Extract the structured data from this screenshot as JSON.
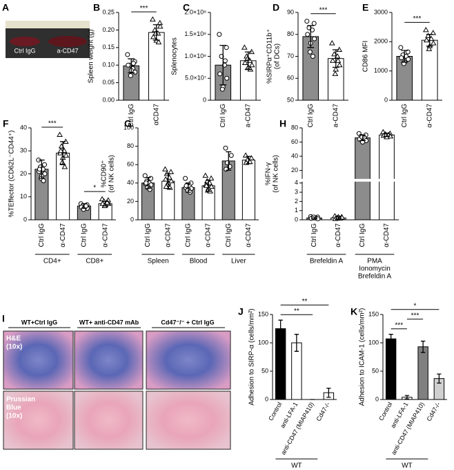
{
  "panel_a": {
    "label": "A",
    "captions": [
      "Ctrl IgG",
      "a-CD47"
    ]
  },
  "panel_i": {
    "label": "I",
    "columns": [
      "WT+Ctrl IgG",
      "WT+ anti-CD47 mAb",
      "Cd47⁻/⁻ + Ctrl  IgG"
    ],
    "rows": [
      [
        "H&E",
        "(10x)"
      ],
      [
        "Prussian",
        "Blue",
        "(10x)"
      ]
    ]
  },
  "chart_data": [
    {
      "type": "bar",
      "panel": "B",
      "ylabel": "Spleen weight (g)",
      "categories": [
        "Ctrl IgG",
        "αCD47"
      ],
      "values": [
        0.098,
        0.193
      ],
      "errors": [
        0.02,
        0.022
      ],
      "colors": [
        "#8c8c8c",
        "#ffffff"
      ],
      "markers": [
        "circle",
        "triangle"
      ],
      "points": [
        [
          0.13,
          0.11,
          0.1,
          0.09,
          0.1,
          0.08,
          0.085,
          0.07,
          0.105
        ],
        [
          0.23,
          0.22,
          0.2,
          0.19,
          0.18,
          0.21,
          0.17,
          0.19,
          0.165
        ]
      ],
      "ylim": [
        0,
        0.25
      ],
      "yticks": [
        {
          "value": 0,
          "label": "0.00"
        },
        {
          "value": 0.05,
          "label": "0.05"
        },
        {
          "value": 0.1,
          "label": "0.10"
        },
        {
          "value": 0.15,
          "label": "0.15"
        },
        {
          "value": 0.2,
          "label": "0.20"
        },
        {
          "value": 0.25,
          "label": "0.25"
        }
      ],
      "annotations": [
        {
          "text": "***",
          "from": 0,
          "to": 1
        }
      ]
    },
    {
      "type": "bar",
      "panel": "C",
      "ylabel": "Splenocytes",
      "categories": [
        "Ctrl IgG",
        "a-CD47"
      ],
      "values": [
        80000000,
        90000000
      ],
      "errors": [
        45000000,
        20000000
      ],
      "colors": [
        "#8c8c8c",
        "#ffffff"
      ],
      "markers": [
        "circle",
        "triangle"
      ],
      "points": [
        [
          150000000,
          120000000,
          100000000,
          80000000,
          60000000,
          50000000,
          30000000,
          25000000,
          90000000
        ],
        [
          120000000,
          110000000,
          100000000,
          90000000,
          85000000,
          80000000,
          75000000,
          95000000,
          70000000
        ]
      ],
      "ylim": [
        0,
        200000000
      ],
      "yticks": [
        0,
        {
          "value": 50000000,
          "label": "5.0×10⁷"
        },
        {
          "value": 100000000,
          "label": "1.0×10⁸"
        },
        {
          "value": 150000000,
          "label": "1.5×10⁸"
        },
        {
          "value": 200000000,
          "label": "2.0×10⁸"
        }
      ]
    },
    {
      "type": "bar",
      "panel": "D",
      "ylabel": [
        "%SIRPα⁺CD11b⁺",
        "(of DCs)"
      ],
      "categories": [
        "Ctrl IgG",
        "a-CD47"
      ],
      "values": [
        79,
        69
      ],
      "errors": [
        5,
        4
      ],
      "colors": [
        "#8c8c8c",
        "#ffffff"
      ],
      "markers": [
        "circle",
        "triangle"
      ],
      "points": [
        [
          86,
          85,
          83,
          82,
          80,
          78,
          76,
          72,
          70
        ],
        [
          76,
          73,
          71,
          70,
          68,
          66,
          64,
          62,
          68
        ]
      ],
      "ylim": [
        50,
        90
      ],
      "yticks": [
        50,
        60,
        70,
        80,
        90
      ],
      "annotations": [
        {
          "text": "***",
          "from": 0,
          "to": 1
        }
      ]
    },
    {
      "type": "bar",
      "panel": "E",
      "ylabel": "CD86 MFI",
      "categories": [
        "Ctrl IgG",
        "α-CD47"
      ],
      "values": [
        1500,
        2050
      ],
      "errors": [
        200,
        200
      ],
      "colors": [
        "#8c8c8c",
        "#ffffff"
      ],
      "markers": [
        "circle",
        "triangle"
      ],
      "points": [
        [
          1800,
          1650,
          1550,
          1500,
          1450,
          1400,
          1300,
          1250
        ],
        [
          2400,
          2300,
          2200,
          2100,
          2050,
          1950,
          1850,
          1750
        ]
      ],
      "ylim": [
        0,
        3000
      ],
      "yticks": [
        0,
        1000,
        2000,
        3000
      ],
      "annotations": [
        {
          "text": "***",
          "from": 0,
          "to": 1
        }
      ]
    },
    {
      "type": "bar",
      "panel": "F",
      "ylabel": "%TEffector (CD62L⁻CD44⁺)",
      "categories": [
        "Ctrl IgG",
        "α-CD47",
        "Ctrl IgG",
        "α-CD47"
      ],
      "values": [
        22,
        29,
        6,
        7
      ],
      "errors": [
        4,
        5,
        1,
        1
      ],
      "colors": [
        "#8c8c8c",
        "#ffffff",
        "#8c8c8c",
        "#ffffff"
      ],
      "markers": [
        "circle",
        "triangle",
        "circle",
        "triangle"
      ],
      "points": [
        [
          26,
          24,
          23,
          22,
          21,
          20,
          19,
          18,
          17,
          22
        ],
        [
          37,
          34,
          32,
          30,
          29,
          28,
          27,
          25,
          23,
          30
        ],
        [
          7,
          6.5,
          6,
          6,
          5.5,
          5,
          5,
          4.5,
          6
        ],
        [
          9,
          8.5,
          8,
          7.5,
          7,
          7,
          6.5,
          6,
          7.5
        ]
      ],
      "ylim": [
        0,
        40
      ],
      "yticks": [
        0,
        10,
        20,
        30,
        40
      ],
      "annotations": [
        {
          "text": "***",
          "from": 0,
          "to": 1
        },
        {
          "text": "*",
          "from": 2,
          "to": 3
        }
      ],
      "groups": [
        {
          "label": "CD4+",
          "from": 0,
          "to": 1
        },
        {
          "label": "CD8+",
          "from": 2,
          "to": 3
        }
      ]
    },
    {
      "type": "bar",
      "panel": "G",
      "ylabel": [
        "%CD90⁺",
        "(of NK cells)"
      ],
      "categories": [
        "Ctrl IgG",
        "α-CD47",
        "Ctrl IgG",
        "α-CD47",
        "Ctrl IgG",
        "α-CD47"
      ],
      "values": [
        40,
        42,
        35,
        37,
        64,
        65
      ],
      "errors": [
        6,
        8,
        5,
        6,
        10,
        4
      ],
      "colors": [
        "#8c8c8c",
        "#ffffff",
        "#8c8c8c",
        "#ffffff",
        "#8c8c8c",
        "#ffffff"
      ],
      "markers": [
        "circle",
        "triangle",
        "circle",
        "triangle",
        "circle",
        "triangle"
      ],
      "points": [
        [
          48,
          45,
          42,
          40,
          39,
          38,
          36,
          35,
          33,
          40
        ],
        [
          55,
          52,
          50,
          46,
          44,
          42,
          40,
          38,
          35,
          36
        ],
        [
          45,
          40,
          38,
          36,
          35,
          34,
          33,
          32,
          30,
          37
        ],
        [
          48,
          45,
          42,
          40,
          38,
          36,
          34,
          32,
          31,
          37
        ],
        [
          78,
          70,
          62,
          58,
          55
        ],
        [
          70,
          67,
          65,
          63,
          62
        ]
      ],
      "ylim": [
        0,
        100
      ],
      "yticks": [
        0,
        20,
        40,
        60,
        80,
        100
      ],
      "groups": [
        {
          "label": "Spleen",
          "from": 0,
          "to": 1
        },
        {
          "label": "Blood",
          "from": 2,
          "to": 3
        },
        {
          "label": "Liver",
          "from": 4,
          "to": 5
        }
      ]
    },
    {
      "type": "bar",
      "panel": "H",
      "ylabel": [
        "%IFN-γ",
        "(of NK cells)"
      ],
      "categories": [
        "Ctrl IgG",
        "α-CD47",
        "Ctrl IgG",
        "α-CD47"
      ],
      "values": [
        0.2,
        0.2,
        66,
        70
      ],
      "errors": [
        0.1,
        0.1,
        4,
        2
      ],
      "colors": [
        "#8c8c8c",
        "#ffffff",
        "#8c8c8c",
        "#ffffff"
      ],
      "markers": [
        "circle",
        "triangle",
        "circle",
        "triangle"
      ],
      "points": [
        [
          0.35,
          0.3,
          0.25,
          0.2,
          0.15,
          0.1,
          0.2,
          0.3
        ],
        [
          0.4,
          0.3,
          0.2,
          0.15,
          0.1,
          0.25,
          0.3,
          0.2
        ],
        [
          72,
          70,
          68,
          66,
          64,
          62,
          60,
          67
        ],
        [
          74,
          72,
          71,
          70,
          69,
          68,
          67,
          70
        ]
      ],
      "ylim_segments": [
        [
          0,
          4
        ],
        [
          10,
          80
        ]
      ],
      "yticks": [
        0,
        1,
        2,
        3,
        4,
        20,
        40,
        60,
        80
      ],
      "groups": [
        {
          "label": "Brefeldin A",
          "from": 0,
          "to": 1
        },
        {
          "label": [
            "PMA",
            "Ionomycin",
            "Brefeldin A"
          ],
          "from": 2,
          "to": 3
        }
      ]
    },
    {
      "type": "bar",
      "panel": "J",
      "ylabel": "Adhesion to SIRP-α  (cells/mm²)",
      "categories": [
        "Control",
        "anti-LFA-1",
        "anti-CD47 (MIAP410)",
        "Cd47-/-"
      ],
      "values": [
        125,
        100,
        0,
        12
      ],
      "errors": [
        15,
        15,
        0,
        8
      ],
      "colors": [
        "#000000",
        "#ffffff",
        "#ffffff",
        "#ffffff"
      ],
      "ylim": [
        0,
        150
      ],
      "yticks": [
        0,
        50,
        100,
        150
      ],
      "annotations": [
        {
          "text": "**",
          "from": 0,
          "to": 2
        },
        {
          "text": "**",
          "from": 0,
          "to": 3
        }
      ],
      "groups": [
        {
          "label": "WT",
          "from": 0,
          "to": 2
        }
      ]
    },
    {
      "type": "bar",
      "panel": "K",
      "ylabel": "Adhesion to ICAM-1  (cells/mm²)",
      "categories": [
        "Control",
        "anti-LFA-1",
        "anti-CD47 (MIAP410)",
        "Cd47-/-"
      ],
      "values": [
        107,
        4,
        93,
        37
      ],
      "errors": [
        8,
        3,
        10,
        8
      ],
      "colors": [
        "#000000",
        "#ffffff",
        "#808080",
        "#d0d0d0"
      ],
      "ylim": [
        0,
        150
      ],
      "yticks": [
        0,
        50,
        100,
        150
      ],
      "annotations": [
        {
          "text": "***",
          "from": 0,
          "to": 1
        },
        {
          "text": "***",
          "from": 1,
          "to": 2
        },
        {
          "text": "*",
          "from": 0,
          "to": 3
        }
      ],
      "groups": [
        {
          "label": "WT",
          "from": 0,
          "to": 2
        }
      ]
    }
  ]
}
